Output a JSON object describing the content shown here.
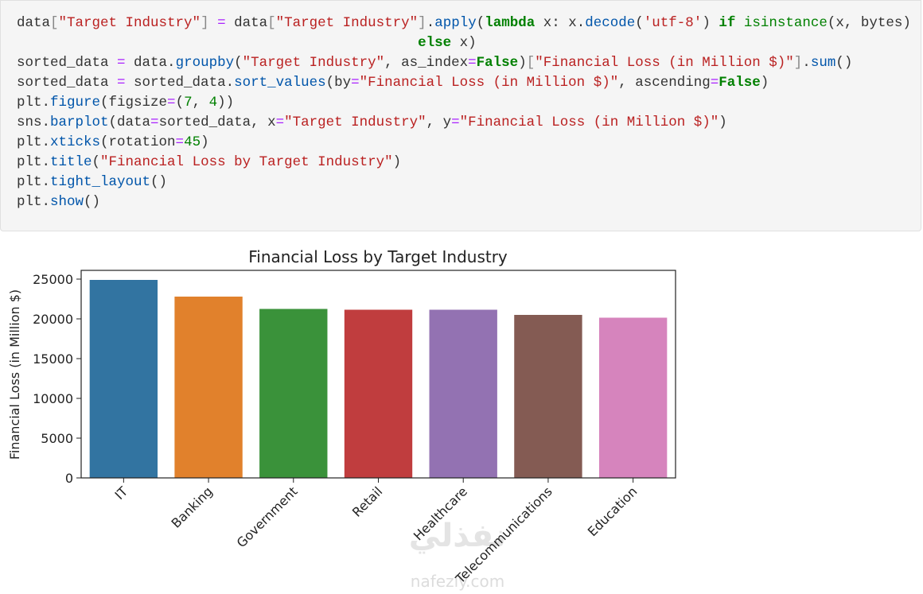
{
  "code": {
    "lines": [
      [
        {
          "t": "data",
          "c": "#333333"
        },
        {
          "t": "[",
          "c": "#888888"
        },
        {
          "t": "\"Target Industry\"",
          "c": "#ba2121"
        },
        {
          "t": "]",
          "c": "#888888"
        },
        {
          "t": " ",
          "c": "#333333"
        },
        {
          "t": "=",
          "c": "#aa22ff"
        },
        {
          "t": " data",
          "c": "#333333"
        },
        {
          "t": "[",
          "c": "#888888"
        },
        {
          "t": "\"Target Industry\"",
          "c": "#ba2121"
        },
        {
          "t": "]",
          "c": "#888888"
        },
        {
          "t": ".",
          "c": "#333333"
        },
        {
          "t": "apply",
          "c": "#0055aa"
        },
        {
          "t": "(",
          "c": "#333333"
        },
        {
          "t": "lambda",
          "c": "#008000",
          "b": true
        },
        {
          "t": " x: x.",
          "c": "#333333"
        },
        {
          "t": "decode",
          "c": "#0055aa"
        },
        {
          "t": "(",
          "c": "#333333"
        },
        {
          "t": "'utf-8'",
          "c": "#ba2121"
        },
        {
          "t": ") ",
          "c": "#333333"
        },
        {
          "t": "if",
          "c": "#008000",
          "b": true
        },
        {
          "t": " ",
          "c": "#333333"
        },
        {
          "t": "isinstance",
          "c": "#008000"
        },
        {
          "t": "(x, bytes)",
          "c": "#333333"
        }
      ],
      [
        {
          "t": "                                                ",
          "c": "#333333"
        },
        {
          "t": "else",
          "c": "#008000",
          "b": true
        },
        {
          "t": " x)",
          "c": "#333333"
        }
      ],
      [
        {
          "t": "sorted_data ",
          "c": "#333333"
        },
        {
          "t": "=",
          "c": "#aa22ff"
        },
        {
          "t": " data.",
          "c": "#333333"
        },
        {
          "t": "groupby",
          "c": "#0055aa"
        },
        {
          "t": "(",
          "c": "#333333"
        },
        {
          "t": "\"Target Industry\"",
          "c": "#ba2121"
        },
        {
          "t": ", as_index",
          "c": "#333333"
        },
        {
          "t": "=",
          "c": "#aa22ff"
        },
        {
          "t": "False",
          "c": "#008000",
          "b": true
        },
        {
          "t": ")",
          "c": "#333333"
        },
        {
          "t": "[",
          "c": "#888888"
        },
        {
          "t": "\"Financial Loss (in Million $)\"",
          "c": "#ba2121"
        },
        {
          "t": "]",
          "c": "#888888"
        },
        {
          "t": ".",
          "c": "#333333"
        },
        {
          "t": "sum",
          "c": "#0055aa"
        },
        {
          "t": "()",
          "c": "#333333"
        }
      ],
      [
        {
          "t": "sorted_data ",
          "c": "#333333"
        },
        {
          "t": "=",
          "c": "#aa22ff"
        },
        {
          "t": " sorted_data.",
          "c": "#333333"
        },
        {
          "t": "sort_values",
          "c": "#0055aa"
        },
        {
          "t": "(by",
          "c": "#333333"
        },
        {
          "t": "=",
          "c": "#aa22ff"
        },
        {
          "t": "\"Financial Loss (in Million $)\"",
          "c": "#ba2121"
        },
        {
          "t": ", ascending",
          "c": "#333333"
        },
        {
          "t": "=",
          "c": "#aa22ff"
        },
        {
          "t": "False",
          "c": "#008000",
          "b": true
        },
        {
          "t": ")",
          "c": "#333333"
        }
      ],
      [
        {
          "t": "plt.",
          "c": "#333333"
        },
        {
          "t": "figure",
          "c": "#0055aa"
        },
        {
          "t": "(figsize",
          "c": "#333333"
        },
        {
          "t": "=",
          "c": "#aa22ff"
        },
        {
          "t": "(",
          "c": "#333333"
        },
        {
          "t": "7",
          "c": "#008000"
        },
        {
          "t": ", ",
          "c": "#333333"
        },
        {
          "t": "4",
          "c": "#008000"
        },
        {
          "t": "))",
          "c": "#333333"
        }
      ],
      [
        {
          "t": "sns.",
          "c": "#333333"
        },
        {
          "t": "barplot",
          "c": "#0055aa"
        },
        {
          "t": "(data",
          "c": "#333333"
        },
        {
          "t": "=",
          "c": "#aa22ff"
        },
        {
          "t": "sorted_data, x",
          "c": "#333333"
        },
        {
          "t": "=",
          "c": "#aa22ff"
        },
        {
          "t": "\"Target Industry\"",
          "c": "#ba2121"
        },
        {
          "t": ", y",
          "c": "#333333"
        },
        {
          "t": "=",
          "c": "#aa22ff"
        },
        {
          "t": "\"Financial Loss (in Million $)\"",
          "c": "#ba2121"
        },
        {
          "t": ")",
          "c": "#333333"
        }
      ],
      [
        {
          "t": "plt.",
          "c": "#333333"
        },
        {
          "t": "xticks",
          "c": "#0055aa"
        },
        {
          "t": "(rotation",
          "c": "#333333"
        },
        {
          "t": "=",
          "c": "#aa22ff"
        },
        {
          "t": "45",
          "c": "#008000"
        },
        {
          "t": ")",
          "c": "#333333"
        }
      ],
      [
        {
          "t": "plt.",
          "c": "#333333"
        },
        {
          "t": "title",
          "c": "#0055aa"
        },
        {
          "t": "(",
          "c": "#333333"
        },
        {
          "t": "\"Financial Loss by Target Industry\"",
          "c": "#ba2121"
        },
        {
          "t": ")",
          "c": "#333333"
        }
      ],
      [
        {
          "t": "plt.",
          "c": "#333333"
        },
        {
          "t": "tight_layout",
          "c": "#0055aa"
        },
        {
          "t": "()",
          "c": "#333333"
        }
      ],
      [
        {
          "t": "plt.",
          "c": "#333333"
        },
        {
          "t": "show",
          "c": "#0055aa"
        },
        {
          "t": "()",
          "c": "#333333"
        }
      ]
    ]
  },
  "chart_data": {
    "type": "bar",
    "title": "Financial Loss by Target Industry",
    "y_label": "Financial Loss (in Million $)",
    "categories": [
      "IT",
      "Banking",
      "Government",
      "Retail",
      "Healthcare",
      "Telecommunications",
      "Education"
    ],
    "values": [
      24900,
      22800,
      21250,
      21150,
      21150,
      20500,
      20150
    ],
    "colors": [
      "#3274a1",
      "#e1812c",
      "#3a923a",
      "#c03d3e",
      "#9372b2",
      "#845b53",
      "#d684bd"
    ],
    "ylim": [
      0,
      26100
    ],
    "yticks": [
      0,
      5000,
      10000,
      15000,
      20000,
      25000
    ]
  },
  "watermark": {
    "arabic": "نفذلي",
    "latin": "nafezly.com"
  }
}
